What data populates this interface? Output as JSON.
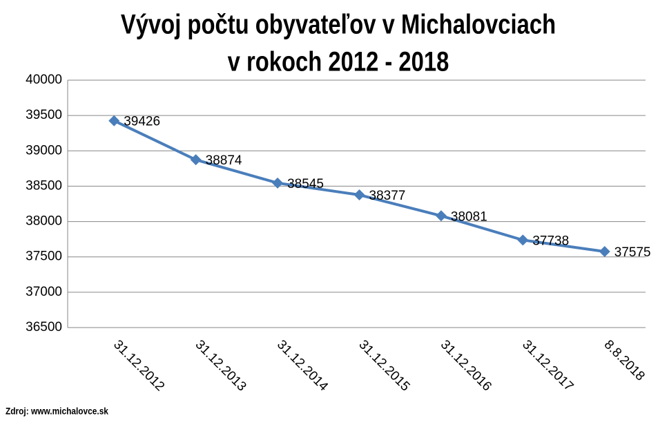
{
  "chart_data": {
    "type": "line",
    "title": [
      "Vývoj počtu obyvateľov v Michalovciach",
      "v rokoch 2012 - 2018"
    ],
    "categories": [
      "31.12.2012",
      "31.12.2013",
      "31.12.2014",
      "31.12.2015",
      "31.12.2016",
      "31.12.2017",
      "8.8.2018"
    ],
    "values": [
      39426,
      38874,
      38545,
      38377,
      38081,
      37738,
      37575
    ],
    "color": "#4a7ebb",
    "ylim": [
      36500,
      40000
    ],
    "yticks": [
      36500,
      37000,
      37500,
      38000,
      38500,
      39000,
      39500,
      40000
    ],
    "grid": true,
    "source": "Zdroj: www.michalovce.sk"
  }
}
